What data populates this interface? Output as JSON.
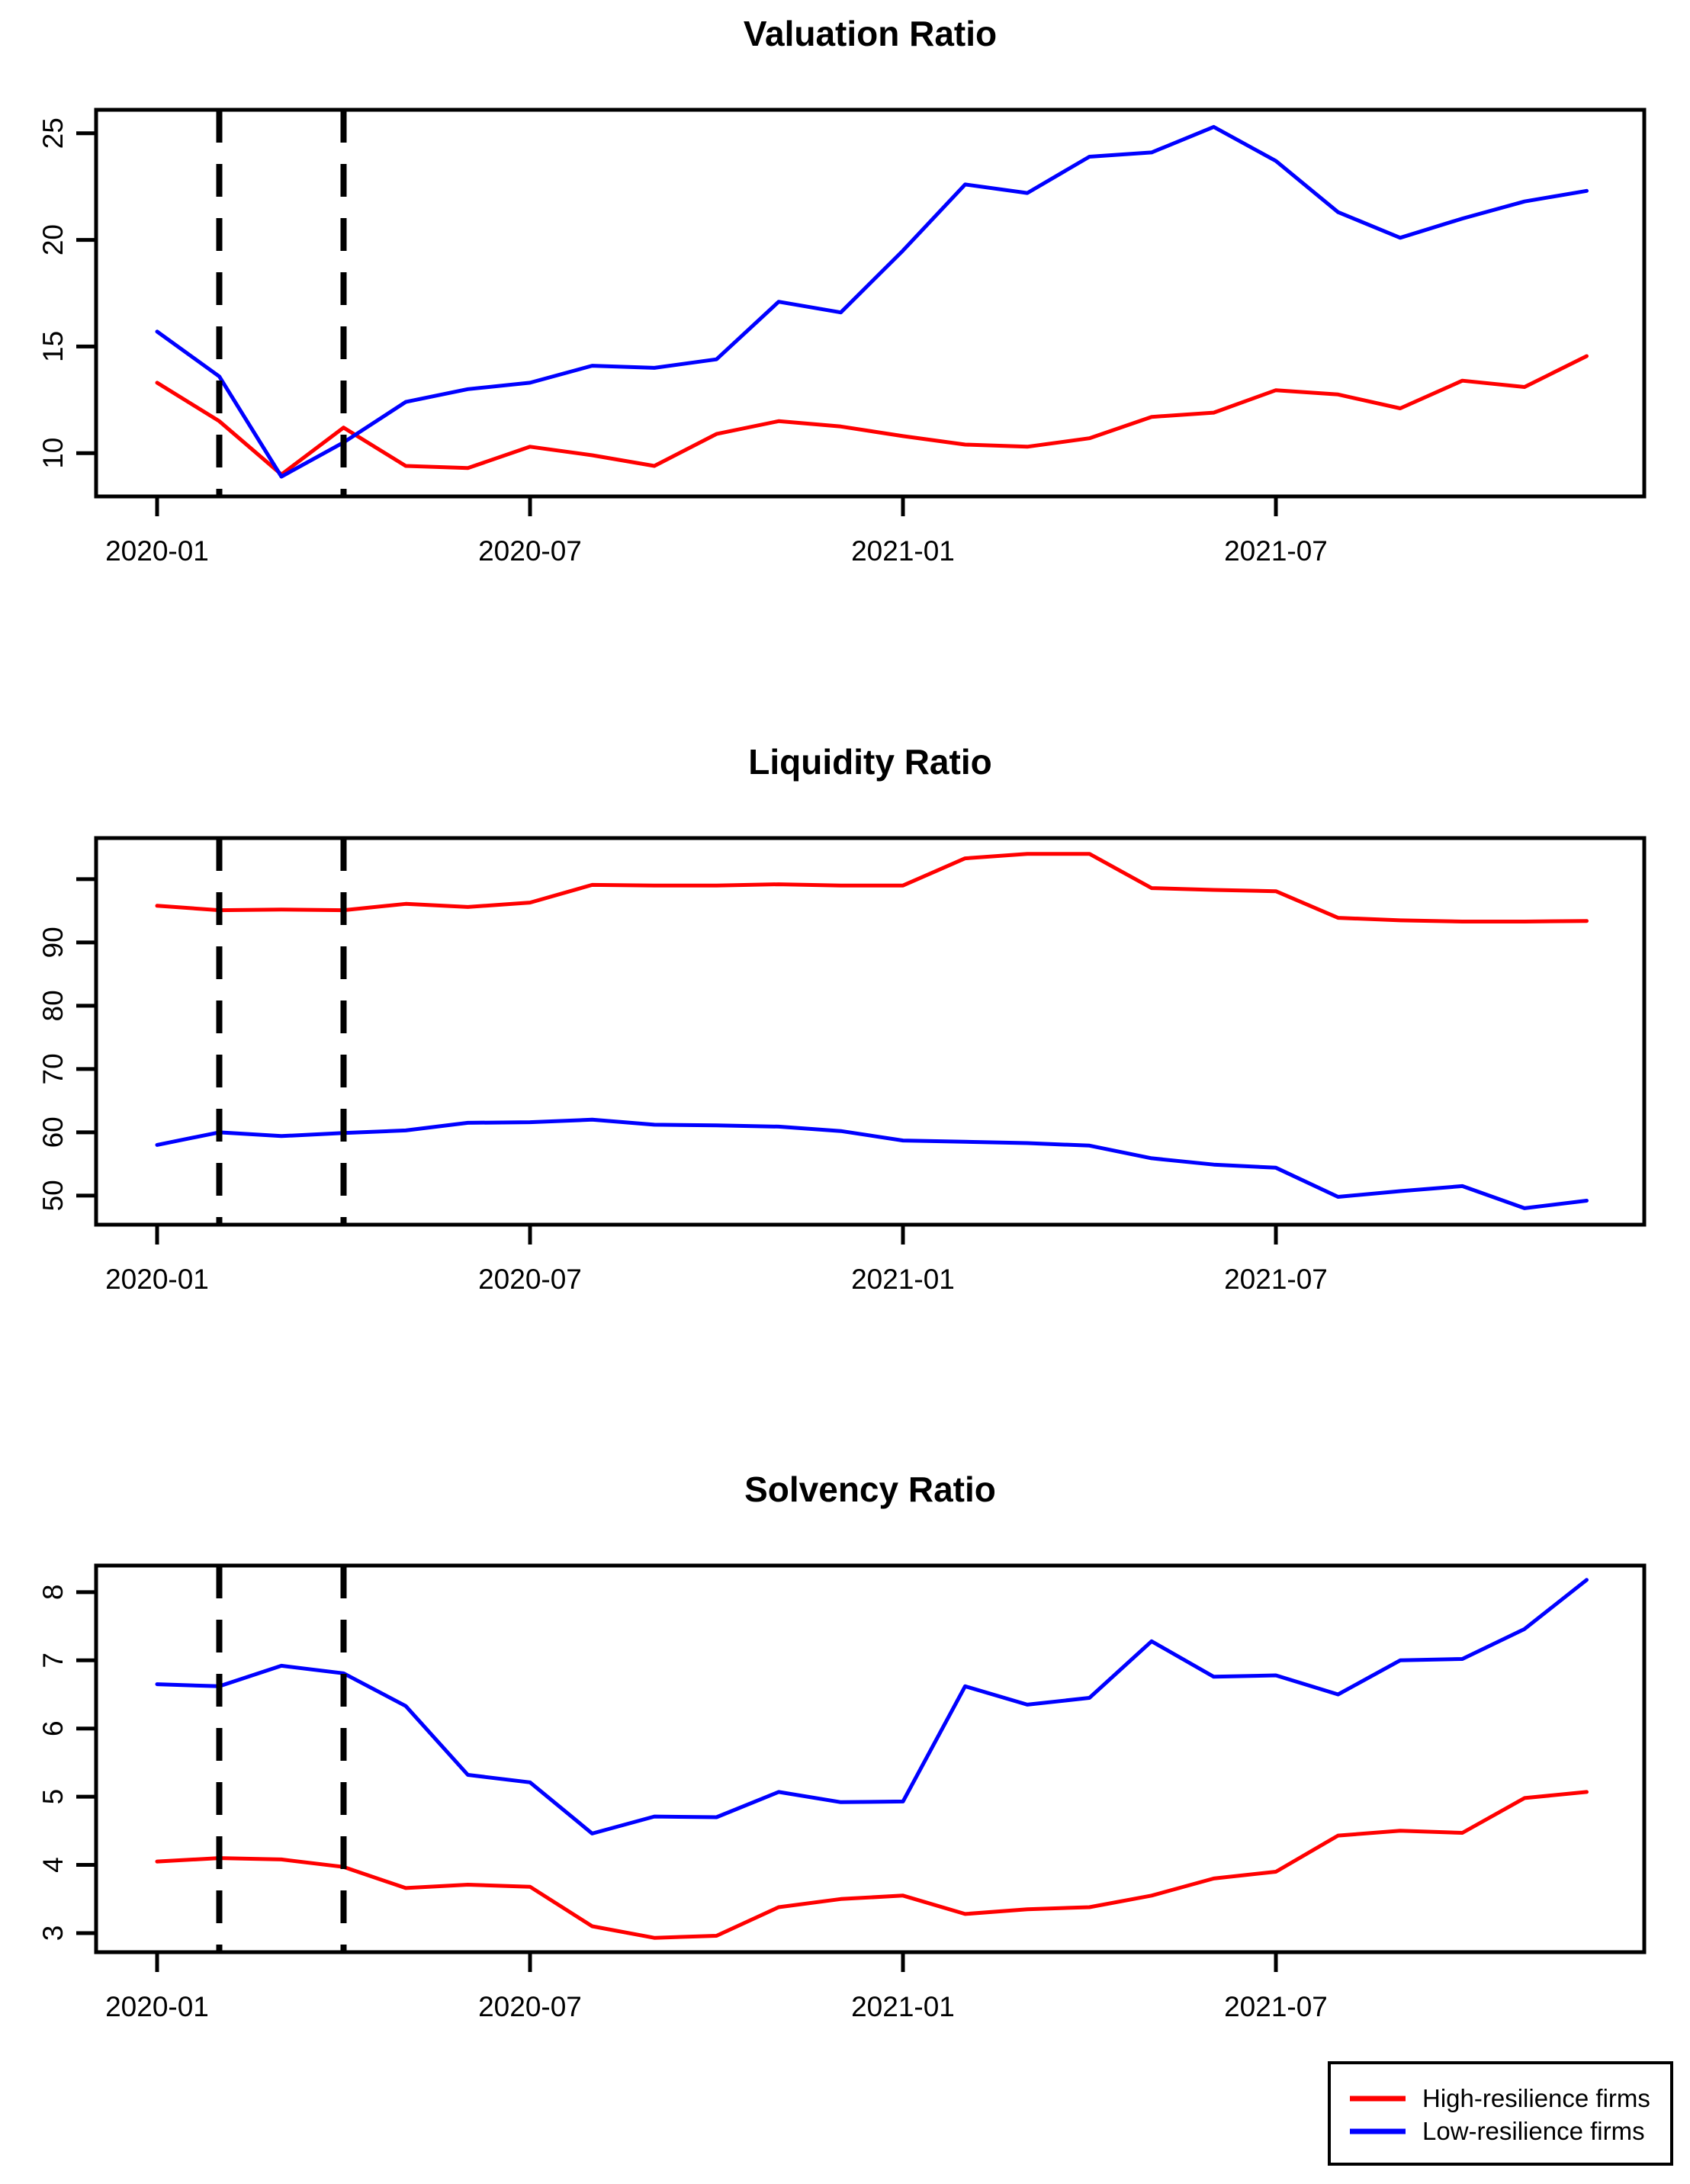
{
  "figure": {
    "background": "#FFFFFF",
    "panel_count": 3
  },
  "colors": {
    "high_resilience": "#FF0000",
    "low_resilience": "#0000FF",
    "axis": "#000000",
    "event_line": "#000000"
  },
  "x_axis": {
    "tick_labels": [
      "2020-01",
      "2020-07",
      "2021-01",
      "2021-07"
    ],
    "tick_month_index": [
      0,
      6,
      12,
      18
    ]
  },
  "event_lines": {
    "style": "dashed",
    "month_index": [
      1,
      3
    ],
    "dates": [
      "2020-02",
      "2020-04"
    ]
  },
  "legend": {
    "items": [
      {
        "label": "High-resilience firms",
        "color_key": "high_resilience"
      },
      {
        "label": "Low-resilience firms",
        "color_key": "low_resilience"
      }
    ]
  },
  "chart_data": [
    {
      "type": "line",
      "title": "Valuation Ratio",
      "xlabel": "",
      "ylabel": "",
      "grid": false,
      "x": [
        "2020-01",
        "2020-02",
        "2020-03",
        "2020-04",
        "2020-05",
        "2020-06",
        "2020-07",
        "2020-08",
        "2020-09",
        "2020-10",
        "2020-11",
        "2020-12",
        "2021-01",
        "2021-02",
        "2021-03",
        "2021-04",
        "2021-05",
        "2021-06",
        "2021-07",
        "2021-08",
        "2021-09",
        "2021-10",
        "2021-11",
        "2021-12"
      ],
      "ylim": [
        7.97,
        26.1
      ],
      "y_axis": {
        "tick_values": [
          10,
          15,
          20,
          25
        ],
        "tick_labels": [
          "10",
          "15",
          "20",
          "25"
        ]
      },
      "series": [
        {
          "name": "High-resilience firms",
          "color_key": "high_resilience",
          "values": [
            13.3,
            11.5,
            9.0,
            11.2,
            9.4,
            9.3,
            10.3,
            9.9,
            9.4,
            10.9,
            11.5,
            11.25,
            10.8,
            10.4,
            10.3,
            10.7,
            11.7,
            11.9,
            12.95,
            12.75,
            12.1,
            13.4,
            13.1,
            14.55
          ]
        },
        {
          "name": "Low-resilience firms",
          "color_key": "low_resilience",
          "values": [
            15.7,
            13.6,
            8.9,
            10.5,
            12.4,
            13.0,
            13.3,
            14.1,
            14.0,
            14.4,
            17.1,
            16.6,
            19.5,
            22.6,
            22.2,
            23.9,
            24.1,
            25.3,
            23.7,
            21.3,
            20.1,
            21.0,
            21.8,
            22.3
          ]
        }
      ]
    },
    {
      "type": "line",
      "title": "Liquidity Ratio",
      "xlabel": "",
      "ylabel": "",
      "grid": false,
      "x": [
        "2020-01",
        "2020-02",
        "2020-03",
        "2020-04",
        "2020-05",
        "2020-06",
        "2020-07",
        "2020-08",
        "2020-09",
        "2020-10",
        "2020-11",
        "2020-12",
        "2021-01",
        "2021-02",
        "2021-03",
        "2021-04",
        "2021-05",
        "2021-06",
        "2021-07",
        "2021-08",
        "2021-09",
        "2021-10",
        "2021-11",
        "2021-12"
      ],
      "ylim": [
        45.4,
        106.5
      ],
      "y_axis": {
        "tick_values": [
          50,
          60,
          70,
          80,
          90,
          100
        ],
        "tick_labels": [
          "50",
          "60",
          "70",
          "80",
          "90",
          ""
        ]
      },
      "series": [
        {
          "name": "High-resilience firms",
          "color_key": "high_resilience",
          "values": [
            95.8,
            95.1,
            95.2,
            95.1,
            96.1,
            95.6,
            96.3,
            99.1,
            99.0,
            99.0,
            99.2,
            99.0,
            99.0,
            103.3,
            104.0,
            104.0,
            98.6,
            98.3,
            98.1,
            93.9,
            93.5,
            93.3,
            93.3,
            93.4
          ]
        },
        {
          "name": "Low-resilience firms",
          "color_key": "low_resilience",
          "values": [
            58.0,
            60.0,
            59.4,
            59.9,
            60.3,
            61.5,
            61.6,
            62.0,
            61.2,
            61.1,
            60.9,
            60.2,
            58.7,
            58.5,
            58.3,
            57.9,
            55.9,
            54.9,
            54.4,
            49.8,
            50.7,
            51.5,
            48.0,
            49.2
          ]
        }
      ]
    },
    {
      "type": "line",
      "title": "Solvency Ratio",
      "xlabel": "",
      "ylabel": "",
      "grid": false,
      "x": [
        "2020-01",
        "2020-02",
        "2020-03",
        "2020-04",
        "2020-05",
        "2020-06",
        "2020-07",
        "2020-08",
        "2020-09",
        "2020-10",
        "2020-11",
        "2020-12",
        "2021-01",
        "2021-02",
        "2021-03",
        "2021-04",
        "2021-05",
        "2021-06",
        "2021-07",
        "2021-08",
        "2021-09",
        "2021-10",
        "2021-11",
        "2021-12"
      ],
      "ylim": [
        2.72,
        8.39
      ],
      "y_axis": {
        "tick_values": [
          3,
          4,
          5,
          6,
          7,
          8
        ],
        "tick_labels": [
          "3",
          "4",
          "5",
          "6",
          "7",
          "8"
        ]
      },
      "series": [
        {
          "name": "High-resilience firms",
          "color_key": "high_resilience",
          "values": [
            4.05,
            4.1,
            4.08,
            3.97,
            3.66,
            3.71,
            3.68,
            3.1,
            2.93,
            2.96,
            3.38,
            3.5,
            3.55,
            3.28,
            3.35,
            3.38,
            3.55,
            3.8,
            3.9,
            4.43,
            4.5,
            4.47,
            4.98,
            5.07
          ]
        },
        {
          "name": "Low-resilience firms",
          "color_key": "low_resilience",
          "values": [
            6.65,
            6.62,
            6.92,
            6.81,
            6.33,
            5.32,
            5.21,
            4.46,
            4.71,
            4.7,
            5.07,
            4.92,
            4.93,
            6.62,
            6.35,
            6.45,
            7.28,
            6.76,
            6.78,
            6.5,
            7.0,
            7.02,
            7.46,
            8.18
          ]
        }
      ]
    }
  ]
}
